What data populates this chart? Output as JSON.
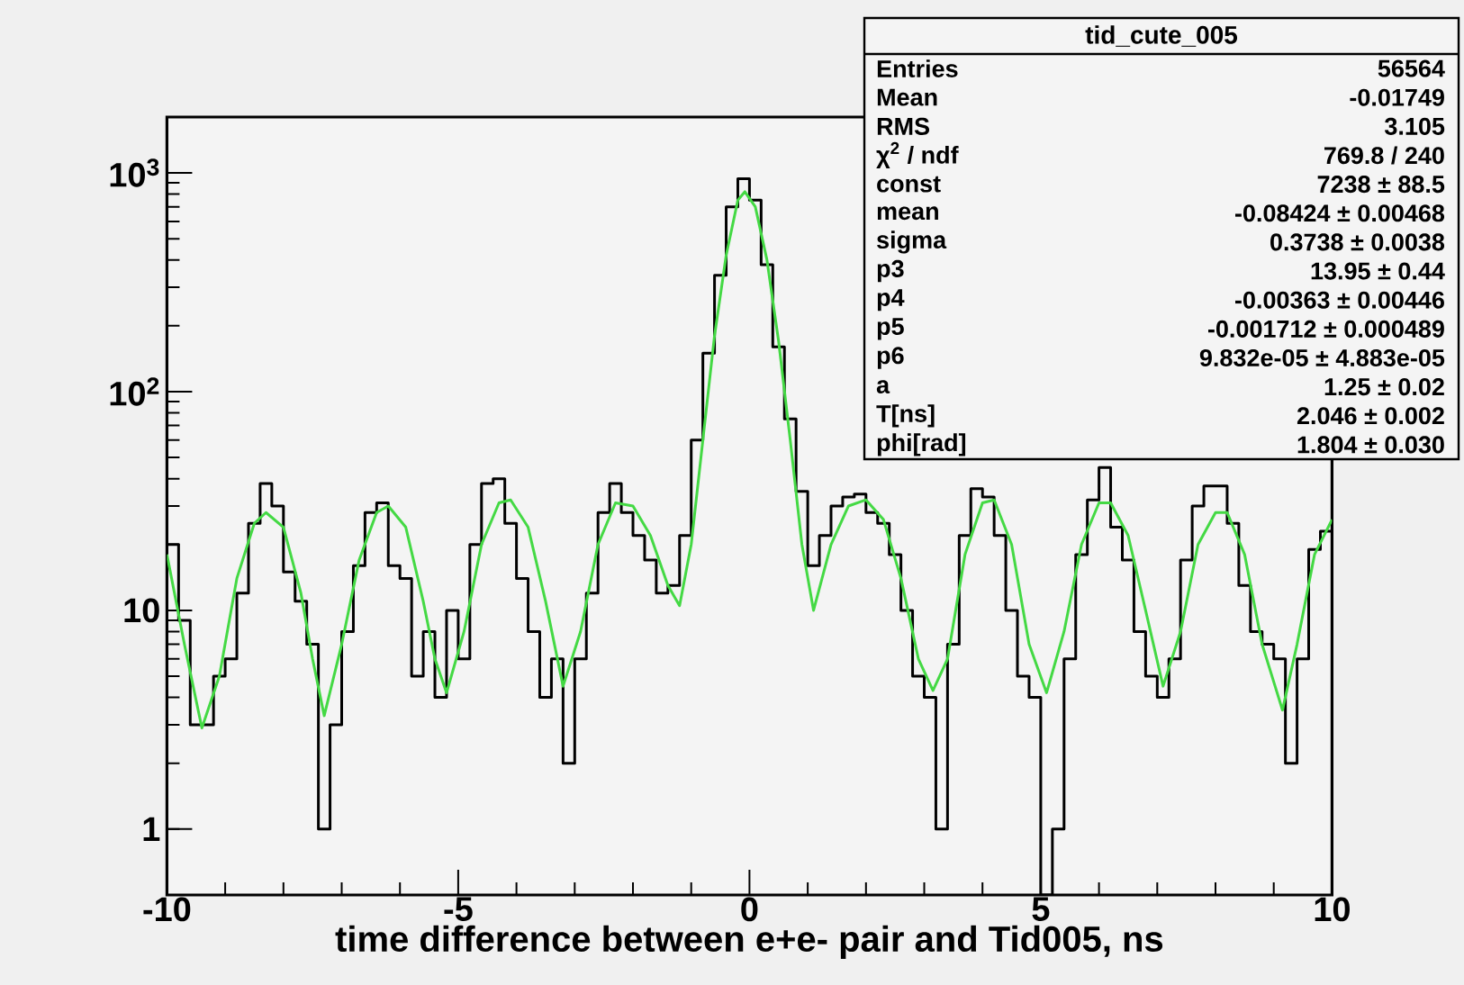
{
  "chart_data": {
    "type": "histogram",
    "title": "tid_cute_005",
    "xlabel": "time difference between e+e- pair and Tid005, ns",
    "xlim": [
      -10,
      10
    ],
    "xticks": [
      -10,
      -5,
      0,
      5,
      10
    ],
    "ylim": [
      0.5,
      1800
    ],
    "yticks": [
      1,
      10,
      {
        "value": 100,
        "label": "10$^{2}$"
      },
      {
        "value": 1000,
        "label": "10$^{3}$"
      }
    ],
    "log": true,
    "bins": [
      -10,
      -9.8,
      -9.6,
      -9.4,
      -9.2,
      -9,
      -8.8,
      -8.6,
      -8.4,
      -8.2,
      -8,
      -7.8,
      -7.6,
      -7.4,
      -7.2,
      -7,
      -6.8,
      -6.6,
      -6.4,
      -6.2,
      -6,
      -5.8,
      -5.6,
      -5.4,
      -5.2,
      -5,
      -4.8,
      -4.6,
      -4.4,
      -4.2,
      -4,
      -3.8,
      -3.6,
      -3.4,
      -3.2,
      -3,
      -2.8,
      -2.6,
      -2.4,
      -2.2,
      -2,
      -1.8,
      -1.6,
      -1.4,
      -1.2,
      -1,
      -0.8,
      -0.6,
      -0.4,
      -0.2,
      0,
      0.2,
      0.4,
      0.6,
      0.8,
      1,
      1.2,
      1.4,
      1.6,
      1.8,
      2,
      2.2,
      2.4,
      2.6,
      2.8,
      3,
      3.2,
      3.4,
      3.6,
      3.8,
      4,
      4.2,
      4.4,
      4.6,
      4.8,
      5,
      5.2,
      5.4,
      5.6,
      5.8,
      6,
      6.2,
      6.4,
      6.6,
      6.8,
      7,
      7.2,
      7.4,
      7.6,
      7.8,
      8,
      8.2,
      8.4,
      8.6,
      8.8,
      9,
      9.2,
      9.4,
      9.6,
      9.8,
      10
    ],
    "series": [
      {
        "color": "#000000",
        "values": [
          20,
          9,
          3,
          3,
          5,
          6,
          12,
          25,
          38,
          30,
          15,
          11,
          7,
          1,
          3,
          8,
          16,
          28,
          31,
          16,
          14,
          5,
          8,
          4,
          10,
          6,
          20,
          38,
          40,
          25,
          14,
          8,
          4,
          6,
          2,
          6,
          12,
          28,
          38,
          28,
          22,
          17,
          12,
          13,
          22,
          60,
          150,
          340,
          700,
          940,
          750,
          380,
          160,
          75,
          35,
          16,
          22,
          30,
          33,
          34,
          28,
          25,
          18,
          10,
          5,
          4,
          1,
          7,
          22,
          36,
          33,
          22,
          10,
          5,
          4,
          0.5,
          1,
          6,
          18,
          32,
          45,
          24,
          17,
          8,
          5,
          4,
          6,
          17,
          30,
          37,
          37,
          25,
          13,
          8,
          7,
          6,
          2,
          6,
          19,
          23
        ]
      },
      {
        "type": "line",
        "color": "#44d944",
        "x": [
          -10,
          -9.7,
          -9.4,
          -9.1,
          -8.8,
          -8.5,
          -8.3,
          -8.0,
          -7.7,
          -7.5,
          -7.3,
          -7.0,
          -6.7,
          -6.4,
          -6.2,
          -5.9,
          -5.6,
          -5.4,
          -5.2,
          -4.9,
          -4.6,
          -4.3,
          -4.1,
          -3.8,
          -3.5,
          -3.2,
          -2.9,
          -2.6,
          -2.3,
          -2.0,
          -1.7,
          -1.4,
          -1.2,
          -1.0,
          -0.8,
          -0.6,
          -0.4,
          -0.2,
          -0.08,
          0.1,
          0.3,
          0.5,
          0.7,
          0.9,
          1.1,
          1.4,
          1.7,
          2.0,
          2.3,
          2.6,
          2.9,
          3.15,
          3.4,
          3.7,
          4.0,
          4.2,
          4.5,
          4.8,
          5.1,
          5.4,
          5.7,
          6.0,
          6.2,
          6.5,
          6.8,
          7.1,
          7.4,
          7.7,
          8.0,
          8.2,
          8.5,
          8.8,
          9.15,
          9.4,
          9.7,
          10
        ],
        "values": [
          18,
          7,
          2.9,
          5,
          14,
          25,
          28,
          24,
          12,
          6,
          3.3,
          7,
          17,
          28,
          30,
          24,
          11,
          6,
          4.2,
          8,
          20,
          31,
          32,
          24,
          11,
          4.5,
          8,
          20,
          31,
          30,
          22,
          13,
          10.5,
          20,
          60,
          180,
          420,
          750,
          820,
          700,
          400,
          170,
          60,
          20,
          10,
          20,
          30,
          32,
          26,
          14,
          6,
          4.3,
          6,
          18,
          31,
          32,
          20,
          7,
          4.2,
          8,
          20,
          31,
          31,
          22,
          10,
          4.5,
          8,
          20,
          28,
          28,
          18,
          7,
          3.5,
          7,
          18,
          26
        ]
      }
    ],
    "annotations": [
      "Entries",
      "56564",
      "Mean",
      "-0.01749",
      "RMS",
      "3.105",
      "χ$^{2}$ / ndf",
      "769.8 / 240",
      "const",
      "7238 ± 88.5",
      "mean",
      "-0.08424 ± 0.00468",
      "sigma",
      "0.3738 ± 0.0038",
      "p3",
      "13.95 ± 0.44",
      "p4",
      "-0.00363 ± 0.00446",
      "p5",
      "-0.001712 ± 0.000489",
      "p6",
      "9.832e-05 ± 4.883e-05",
      "a",
      "1.25 ± 0.02",
      "T[ns]",
      "2.046 ± 0.002",
      "phi[rad]",
      "1.804 ± 0.030"
    ]
  }
}
